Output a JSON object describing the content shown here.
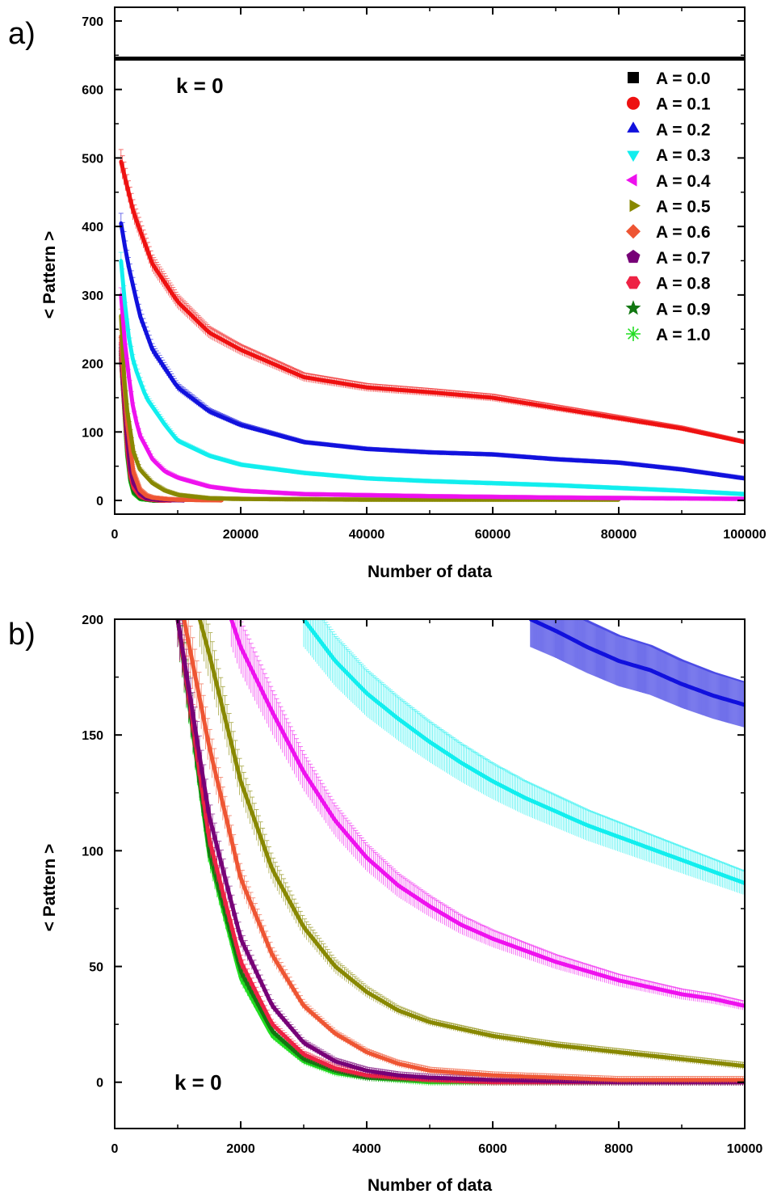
{
  "figure": {
    "panel_a_letter": "a)",
    "panel_b_letter": "b)",
    "panel_a_annotation": "k = 0",
    "panel_b_annotation": "k = 0",
    "series_colors": [
      "#000000",
      "#ee1111",
      "#1111dd",
      "#11eeee",
      "#ee11ee",
      "#888800",
      "#ee5533",
      "#770077",
      "#ee2244",
      "#117711",
      "#22dd22"
    ],
    "series_markers": [
      "square",
      "circle",
      "triangle-up",
      "triangle-down",
      "triangle-left",
      "triangle-right",
      "diamond",
      "pentagon",
      "hexagon",
      "star",
      "asterisk"
    ]
  },
  "chart_data": [
    {
      "type": "line",
      "panel": "a)",
      "annotation": "k = 0",
      "xlabel": "Number of data",
      "ylabel": "< Pattern >",
      "xlim": [
        0,
        100000
      ],
      "ylim": [
        -20,
        720
      ],
      "xticks": [
        0,
        20000,
        40000,
        60000,
        80000,
        100000
      ],
      "xtick_labels": [
        "0",
        "20000",
        "40000",
        "60000",
        "80000",
        "100000"
      ],
      "yticks": [
        0,
        100,
        200,
        300,
        400,
        500,
        600,
        700
      ],
      "ytick_labels": [
        "0",
        "100",
        "200",
        "300",
        "400",
        "500",
        "600",
        "700"
      ],
      "error_bars": true,
      "legend_position": "top-right",
      "series": [
        {
          "name": "A = 0.0",
          "x": [
            0,
            100000
          ],
          "y": [
            645,
            645
          ]
        },
        {
          "name": "A = 0.1",
          "x": [
            1000,
            3000,
            6000,
            10000,
            15000,
            20000,
            25000,
            30000,
            40000,
            50000,
            60000,
            70000,
            80000,
            90000,
            100000
          ],
          "y": [
            495,
            420,
            345,
            290,
            245,
            220,
            200,
            180,
            165,
            158,
            150,
            135,
            120,
            105,
            85
          ]
        },
        {
          "name": "A = 0.2",
          "x": [
            1000,
            2000,
            4000,
            6000,
            10000,
            15000,
            20000,
            30000,
            40000,
            50000,
            60000,
            70000,
            80000,
            90000,
            100000
          ],
          "y": [
            405,
            350,
            270,
            220,
            165,
            130,
            110,
            85,
            75,
            70,
            67,
            60,
            55,
            45,
            32
          ]
        },
        {
          "name": "A = 0.3",
          "x": [
            1000,
            2000,
            3000,
            5000,
            8000,
            10000,
            15000,
            20000,
            30000,
            40000,
            50000,
            60000,
            70000,
            80000,
            90000,
            100000
          ],
          "y": [
            350,
            250,
            200,
            150,
            110,
            87,
            65,
            52,
            40,
            32,
            28,
            25,
            22,
            18,
            14,
            9
          ]
        },
        {
          "name": "A = 0.4",
          "x": [
            1000,
            1800,
            3000,
            4000,
            6000,
            8000,
            10000,
            15000,
            20000,
            30000,
            50000,
            70000,
            100000
          ],
          "y": [
            300,
            210,
            130,
            95,
            60,
            42,
            33,
            20,
            14,
            9,
            6,
            4,
            2
          ]
        },
        {
          "name": "A = 0.5",
          "x": [
            1000,
            1300,
            2000,
            3000,
            4000,
            6000,
            8000,
            10000,
            15000,
            20000,
            40000,
            80000
          ],
          "y": [
            270,
            200,
            130,
            70,
            45,
            25,
            14,
            8,
            3,
            2,
            1,
            1
          ]
        },
        {
          "name": "A = 0.6",
          "x": [
            1000,
            1200,
            2000,
            3000,
            4000,
            5000,
            6000,
            8000,
            10000,
            17000
          ],
          "y": [
            240,
            200,
            110,
            40,
            15,
            7,
            4,
            2,
            1,
            0
          ]
        },
        {
          "name": "A = 0.7",
          "x": [
            1000,
            1100,
            2000,
            2500,
            3000,
            4000,
            5000,
            7000,
            11000
          ],
          "y": [
            230,
            200,
            90,
            45,
            25,
            10,
            3,
            1,
            0
          ]
        },
        {
          "name": "A = 0.8",
          "x": [
            1000,
            1050,
            2000,
            2500,
            3000,
            4000,
            5000,
            7000,
            9000
          ],
          "y": [
            220,
            200,
            75,
            35,
            18,
            6,
            2,
            0,
            0
          ]
        },
        {
          "name": "A = 0.9",
          "x": [
            1000,
            1050,
            2000,
            2500,
            3000,
            4000,
            6000,
            8000
          ],
          "y": [
            215,
            200,
            70,
            30,
            12,
            3,
            0,
            0
          ]
        },
        {
          "name": "A = 1.0",
          "x": [
            1000,
            1050,
            2000,
            2500,
            3000,
            4000,
            6000,
            7000
          ],
          "y": [
            210,
            200,
            65,
            27,
            10,
            2,
            0,
            0
          ]
        }
      ]
    },
    {
      "type": "line",
      "panel": "b)",
      "annotation": "k = 0",
      "xlabel": "Number of data",
      "ylabel": "< Pattern >",
      "xlim": [
        0,
        10000
      ],
      "ylim": [
        -20,
        200
      ],
      "xticks": [
        0,
        2000,
        4000,
        6000,
        8000,
        10000
      ],
      "xtick_labels": [
        "0",
        "2000",
        "4000",
        "6000",
        "8000",
        "10000"
      ],
      "yticks": [
        0,
        50,
        100,
        150,
        200
      ],
      "ytick_labels": [
        "0",
        "50",
        "100",
        "150",
        "200"
      ],
      "error_bars": true,
      "series": [
        {
          "name": "A = 0.2",
          "x": [
            6600,
            7000,
            7500,
            8000,
            8500,
            9000,
            9500,
            10000
          ],
          "y": [
            200,
            195,
            188,
            182,
            178,
            172,
            167,
            163
          ]
        },
        {
          "name": "A = 0.3",
          "x": [
            3000,
            3500,
            4000,
            4500,
            5000,
            5500,
            6000,
            6500,
            7000,
            7500,
            8000,
            8500,
            9000,
            9500,
            10000
          ],
          "y": [
            200,
            182,
            168,
            157,
            147,
            138,
            130,
            123,
            117,
            111,
            106,
            101,
            96,
            91,
            86
          ]
        },
        {
          "name": "A = 0.4",
          "x": [
            1850,
            2000,
            2500,
            3000,
            3500,
            4000,
            4500,
            5000,
            5500,
            6000,
            6500,
            7000,
            7500,
            8000,
            8500,
            9000,
            9500,
            10000
          ],
          "y": [
            200,
            188,
            160,
            134,
            113,
            97,
            85,
            76,
            68,
            62,
            57,
            52,
            48,
            44,
            41,
            38,
            36,
            33
          ]
        },
        {
          "name": "A = 0.5",
          "x": [
            1350,
            1500,
            2000,
            2500,
            3000,
            3500,
            4000,
            4500,
            5000,
            6000,
            7000,
            8000,
            9000,
            10000
          ],
          "y": [
            200,
            185,
            130,
            92,
            67,
            50,
            39,
            31,
            26,
            20,
            16,
            13,
            10,
            7
          ]
        },
        {
          "name": "A = 0.6",
          "x": [
            1100,
            1500,
            2000,
            2500,
            3000,
            3500,
            4000,
            4500,
            5000,
            6000,
            7000,
            8000,
            9000,
            10000
          ],
          "y": [
            200,
            145,
            88,
            55,
            33,
            21,
            13,
            8,
            5,
            3,
            2,
            1,
            1,
            1
          ]
        },
        {
          "name": "A = 0.7",
          "x": [
            1000,
            1500,
            2000,
            2500,
            3000,
            3500,
            4000,
            4500,
            5000,
            6000,
            8000,
            10000
          ],
          "y": [
            200,
            115,
            62,
            33,
            17,
            9,
            5,
            3,
            2,
            1,
            0,
            0
          ]
        },
        {
          "name": "A = 0.8",
          "x": [
            1000,
            1500,
            2000,
            2500,
            3000,
            3500,
            4000,
            5000,
            6000,
            8000,
            10000
          ],
          "y": [
            200,
            105,
            52,
            25,
            12,
            6,
            3,
            1,
            0,
            0,
            0
          ]
        },
        {
          "name": "A = 0.9",
          "x": [
            1000,
            1500,
            2000,
            2500,
            3000,
            3500,
            4000,
            5000,
            6000,
            8000,
            10000
          ],
          "y": [
            200,
            100,
            48,
            22,
            10,
            5,
            2,
            1,
            0,
            0,
            0
          ]
        },
        {
          "name": "A = 1.0",
          "x": [
            1000,
            1500,
            2000,
            2500,
            3000,
            3500,
            4000,
            5000,
            6000,
            8000,
            10000
          ],
          "y": [
            200,
            98,
            45,
            20,
            9,
            4,
            2,
            0,
            0,
            0,
            0
          ]
        }
      ]
    }
  ]
}
